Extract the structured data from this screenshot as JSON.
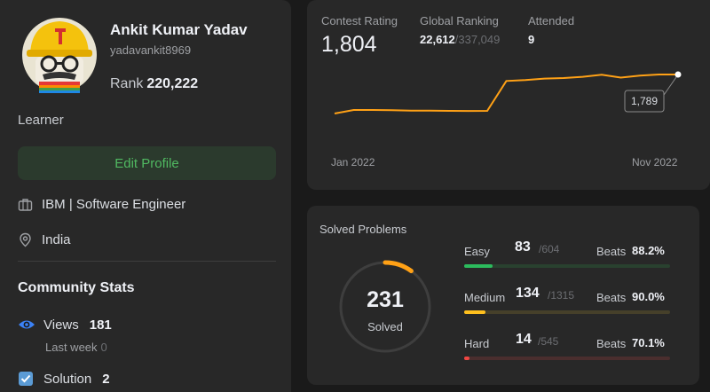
{
  "profile": {
    "name": "Ankit Kumar Yadav",
    "username": "yadavankit8969",
    "rank_label": "Rank",
    "rank_value": "220,222",
    "badge": "Learner",
    "edit_label": "Edit Profile",
    "work": "IBM | Software Engineer",
    "location": "India"
  },
  "community": {
    "title": "Community Stats",
    "views_label": "Views",
    "views_value": "181",
    "last_week_label": "Last week",
    "last_week_value": "0",
    "solution_label": "Solution",
    "solution_value": "2"
  },
  "contest": {
    "rating_label": "Contest Rating",
    "rating_value": "1,804",
    "global_label": "Global Ranking",
    "global_rank": "22,612",
    "global_total": "/337,049",
    "attended_label": "Attended",
    "attended_value": "9",
    "tooltip_value": "1,789"
  },
  "chart_data": {
    "type": "line",
    "x_start_label": "Jan 2022",
    "x_end_label": "Nov 2022",
    "values": [
      1500,
      1526,
      1526,
      1524,
      1522,
      1521,
      1520,
      1519,
      1520,
      1741,
      1748,
      1759,
      1763,
      1772,
      1788,
      1766,
      1781,
      1789,
      1789
    ],
    "color": "#ffa116"
  },
  "solved": {
    "title": "Solved Problems",
    "total": "231",
    "total_label": "Solved",
    "ring_fraction": 0.1,
    "ring_color": "#ffa116",
    "easy": {
      "label": "Easy",
      "count": "83",
      "total": "/604",
      "beats_label": "Beats",
      "beats": "88.2%",
      "fraction": 0.137,
      "color": "#2cbb5d"
    },
    "medium": {
      "label": "Medium",
      "count": "134",
      "total": "/1315",
      "beats_label": "Beats",
      "beats": "90.0%",
      "fraction": 0.102,
      "color": "#ffc01e"
    },
    "hard": {
      "label": "Hard",
      "count": "14",
      "total": "/545",
      "beats_label": "Beats",
      "beats": "70.1%",
      "fraction": 0.026,
      "color": "#ef4743"
    }
  }
}
